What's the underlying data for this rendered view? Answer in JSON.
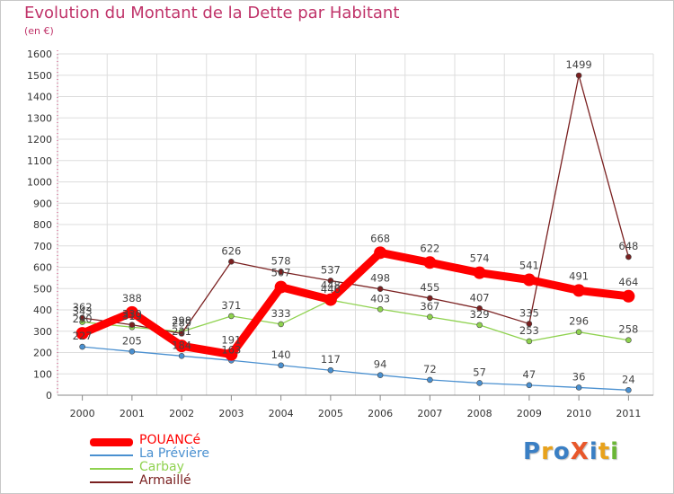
{
  "title": "Evolution du Montant de la Dette par Habitant",
  "subtitle": "(en €)",
  "colors": {
    "title": "#c0346a",
    "POUANCé": "#ff0000",
    "La Prévière": "#4a90d0",
    "Carbay": "#8fd24f",
    "Armaillé": "#7a2020"
  },
  "chart_data": {
    "type": "line",
    "title": "Evolution du Montant de la Dette par Habitant",
    "ylabel": "(en €)",
    "xlabel": "",
    "x": [
      "2000",
      "2001",
      "2002",
      "2003",
      "2004",
      "2005",
      "2006",
      "2007",
      "2008",
      "2009",
      "2010",
      "2011"
    ],
    "ylim": [
      0,
      1600
    ],
    "yticks": [
      "0",
      "100",
      "200",
      "300",
      "400",
      "500",
      "600",
      "700",
      "800",
      "900",
      "1000",
      "1100",
      "1200",
      "1300",
      "1400",
      "1500",
      "1600"
    ],
    "grid": true,
    "legend_position": "bottom-left",
    "series": [
      {
        "name": "POUANCé",
        "color": "#ff0000",
        "values": [
          290,
          388,
          231,
          191,
          507,
          448,
          668,
          622,
          574,
          541,
          491,
          464
        ]
      },
      {
        "name": "La Prévière",
        "color": "#4a90d0",
        "values": [
          227,
          205,
          184,
          163,
          140,
          117,
          94,
          72,
          57,
          47,
          36,
          24
        ]
      },
      {
        "name": "Carbay",
        "color": "#8fd24f",
        "values": [
          343,
          319,
          298,
          371,
          333,
          446,
          403,
          367,
          329,
          253,
          296,
          258
        ]
      },
      {
        "name": "Armaillé",
        "color": "#7a2020",
        "values": [
          362,
          330,
          289,
          626,
          578,
          537,
          498,
          455,
          407,
          335,
          1499,
          648
        ]
      }
    ]
  },
  "legend": [
    {
      "label": "POUANCé",
      "color": "#ff0000"
    },
    {
      "label": "La Prévière",
      "color": "#4a90d0"
    },
    {
      "label": "Carbay",
      "color": "#8fd24f"
    },
    {
      "label": "Armaillé",
      "color": "#7a2020"
    }
  ],
  "logo": {
    "text": "Proxiti",
    "letters": [
      {
        "ch": "P",
        "color": "#3a7fc4"
      },
      {
        "ch": "r",
        "color": "#e8a21c"
      },
      {
        "ch": "o",
        "color": "#3a7fc4"
      },
      {
        "ch": "X",
        "color": "#e8572a"
      },
      {
        "ch": "i",
        "color": "#3a7fc4"
      },
      {
        "ch": "t",
        "color": "#e8a21c"
      },
      {
        "ch": "i",
        "color": "#6bb636"
      }
    ]
  }
}
